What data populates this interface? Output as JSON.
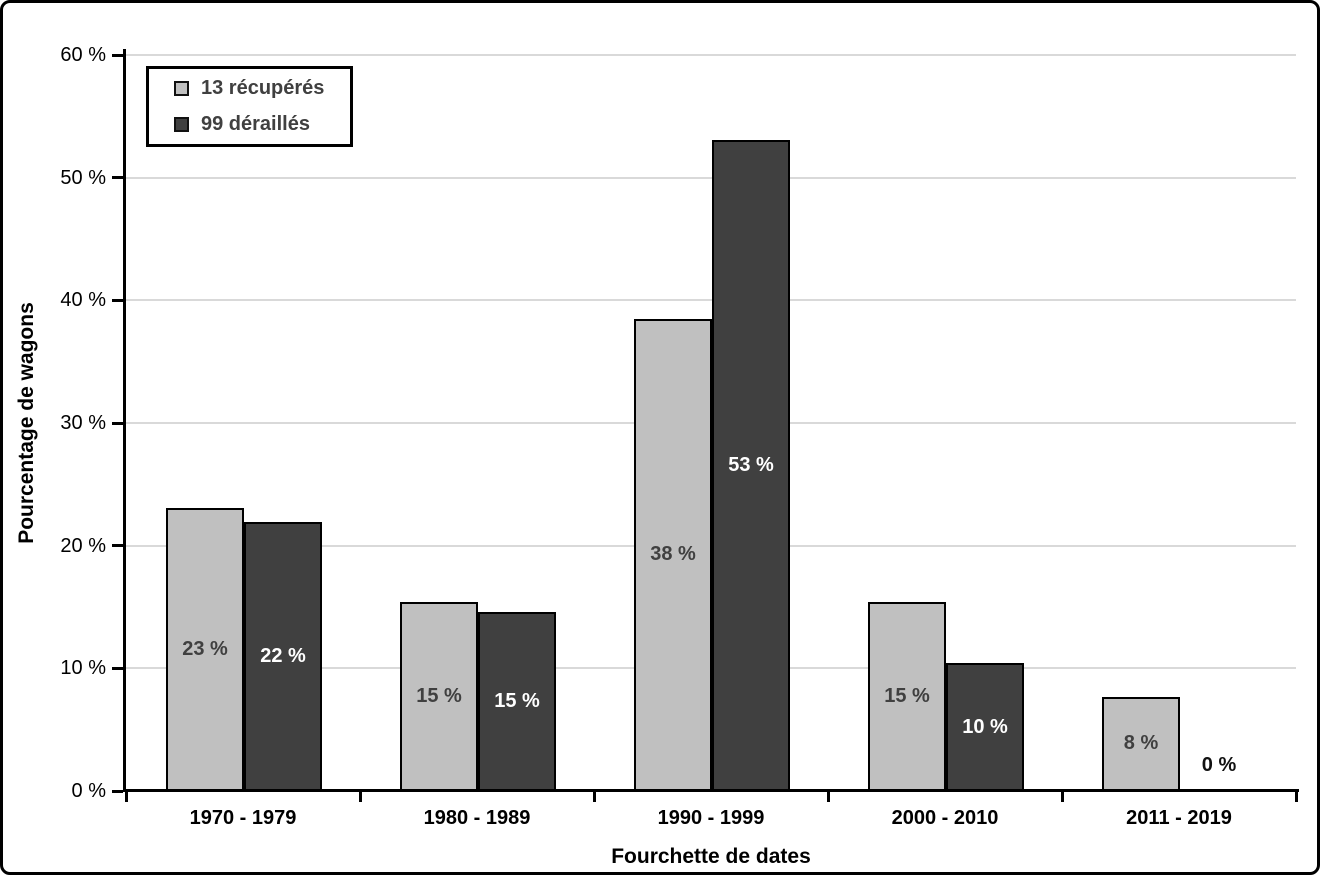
{
  "chart_data": {
    "type": "bar",
    "title": "",
    "xlabel": "Fourchette de dates",
    "ylabel": "Pourcentage de wagons",
    "categories": [
      "1970 - 1979",
      "1980 - 1989",
      "1990 - 1999",
      "2000 - 2010",
      "2011 - 2019"
    ],
    "series": [
      {
        "name": "13 récupérés",
        "color": "#C0C0C0",
        "label_color": "#404040",
        "values": [
          23.1,
          15.4,
          38.5,
          15.4,
          7.7
        ],
        "labels": [
          "23 %",
          "15 %",
          "38 %",
          "15 %",
          "8 %"
        ]
      },
      {
        "name": "99 déraillés",
        "color": "#404040",
        "label_color": "#FFFFFF",
        "values": [
          21.9,
          14.6,
          53.1,
          10.4,
          0
        ],
        "labels": [
          "22 %",
          "15 %",
          "53 %",
          "10 %",
          "0 %"
        ]
      }
    ],
    "y_axis": {
      "min": 0,
      "max": 60,
      "step": 10,
      "tick_labels": [
        "0 %",
        "10 %",
        "20 %",
        "30 %",
        "40 %",
        "50 %",
        "60 %"
      ]
    },
    "zero_value_label_color": "#111111",
    "legend_position": "top-left",
    "grid": true,
    "colors": {
      "gridline": "#D9D9D9",
      "axis": "#000000",
      "background": "#FFFFFF"
    }
  }
}
